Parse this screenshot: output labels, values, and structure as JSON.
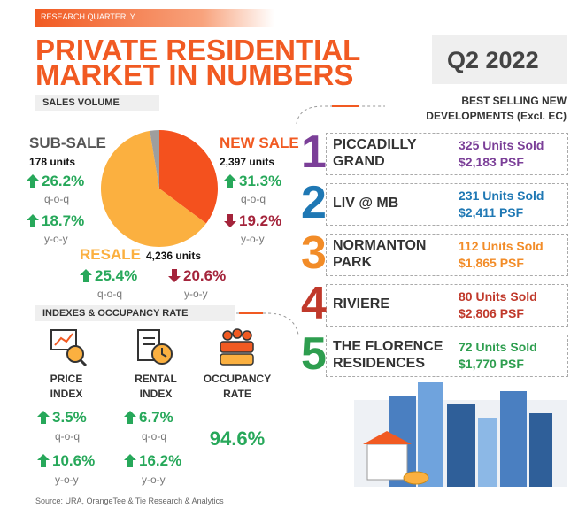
{
  "header": {
    "tag": "RESEARCH QUARTERLY",
    "title_line1": "PRIVATE RESIDENTIAL",
    "title_line2": "MARKET IN NUMBERS",
    "quarter": "Q2 2022"
  },
  "sales_volume": {
    "heading": "SALES VOLUME",
    "segments": [
      {
        "name": "NEW SALE",
        "units": 2397,
        "units_label": "2,397 units",
        "color": "#f4511e",
        "qoq": "31.3%",
        "qoq_label": "q-o-q",
        "yoy": "19.2%",
        "yoy_label": "y-o-y"
      },
      {
        "name": "RESALE",
        "units": 4236,
        "units_label": "4,236 units",
        "color": "#fbb040",
        "qoq": "25.4%",
        "qoq_label": "q-o-q",
        "yoy": "20.6%",
        "yoy_label": "y-o-y"
      },
      {
        "name": "SUB-SALE",
        "units": 178,
        "units_label": "178 units",
        "color": "#9e9e9e",
        "qoq": "26.2%",
        "qoq_label": "q-o-q",
        "yoy": "18.7%",
        "yoy_label": "y-o-y"
      }
    ]
  },
  "indexes": {
    "heading": "INDEXES & OCCUPANCY RATE",
    "items": [
      {
        "name_line1": "PRICE",
        "name_line2": "INDEX",
        "qoq": "3.5%",
        "qoq_label": "q-o-q",
        "yoy": "10.6%",
        "yoy_label": "y-o-y"
      },
      {
        "name_line1": "RENTAL",
        "name_line2": "INDEX",
        "qoq": "6.7%",
        "qoq_label": "q-o-q",
        "yoy": "16.2%",
        "yoy_label": "y-o-y"
      }
    ],
    "occupancy": {
      "name_line1": "OCCUPANCY",
      "name_line2": "RATE",
      "value": "94.6%"
    }
  },
  "best_selling": {
    "heading_line1": "BEST SELLING NEW",
    "heading_line2": "DEVELOPMENTS (Excl. EC)",
    "items": [
      {
        "rank": "1",
        "name_line1": "PICCADILLY",
        "name_line2": "GRAND",
        "units": "325 Units Sold",
        "psf": "$2,183 PSF",
        "color": "#7b3f98"
      },
      {
        "rank": "2",
        "name_line1": "LIV @ MB",
        "name_line2": null,
        "units": "231 Units Sold",
        "psf": "$2,411 PSF",
        "color": "#1f78b4"
      },
      {
        "rank": "3",
        "name_line1": "NORMANTON",
        "name_line2": "PARK",
        "units": "112 Units Sold",
        "psf": "$1,865 PSF",
        "color": "#f28c28"
      },
      {
        "rank": "4",
        "name_line1": "RIVIERE",
        "name_line2": null,
        "units": "80 Units Sold",
        "psf": "$2,806 PSF",
        "color": "#c0392b"
      },
      {
        "rank": "5",
        "name_line1": "THE FLORENCE",
        "name_line2": "RESIDENCES",
        "units": "72 Units Sold",
        "psf": "$1,770 PSF",
        "color": "#2e9e4f"
      }
    ]
  },
  "source": "Source: URA, OrangeTee & Tie Research & Analytics"
}
